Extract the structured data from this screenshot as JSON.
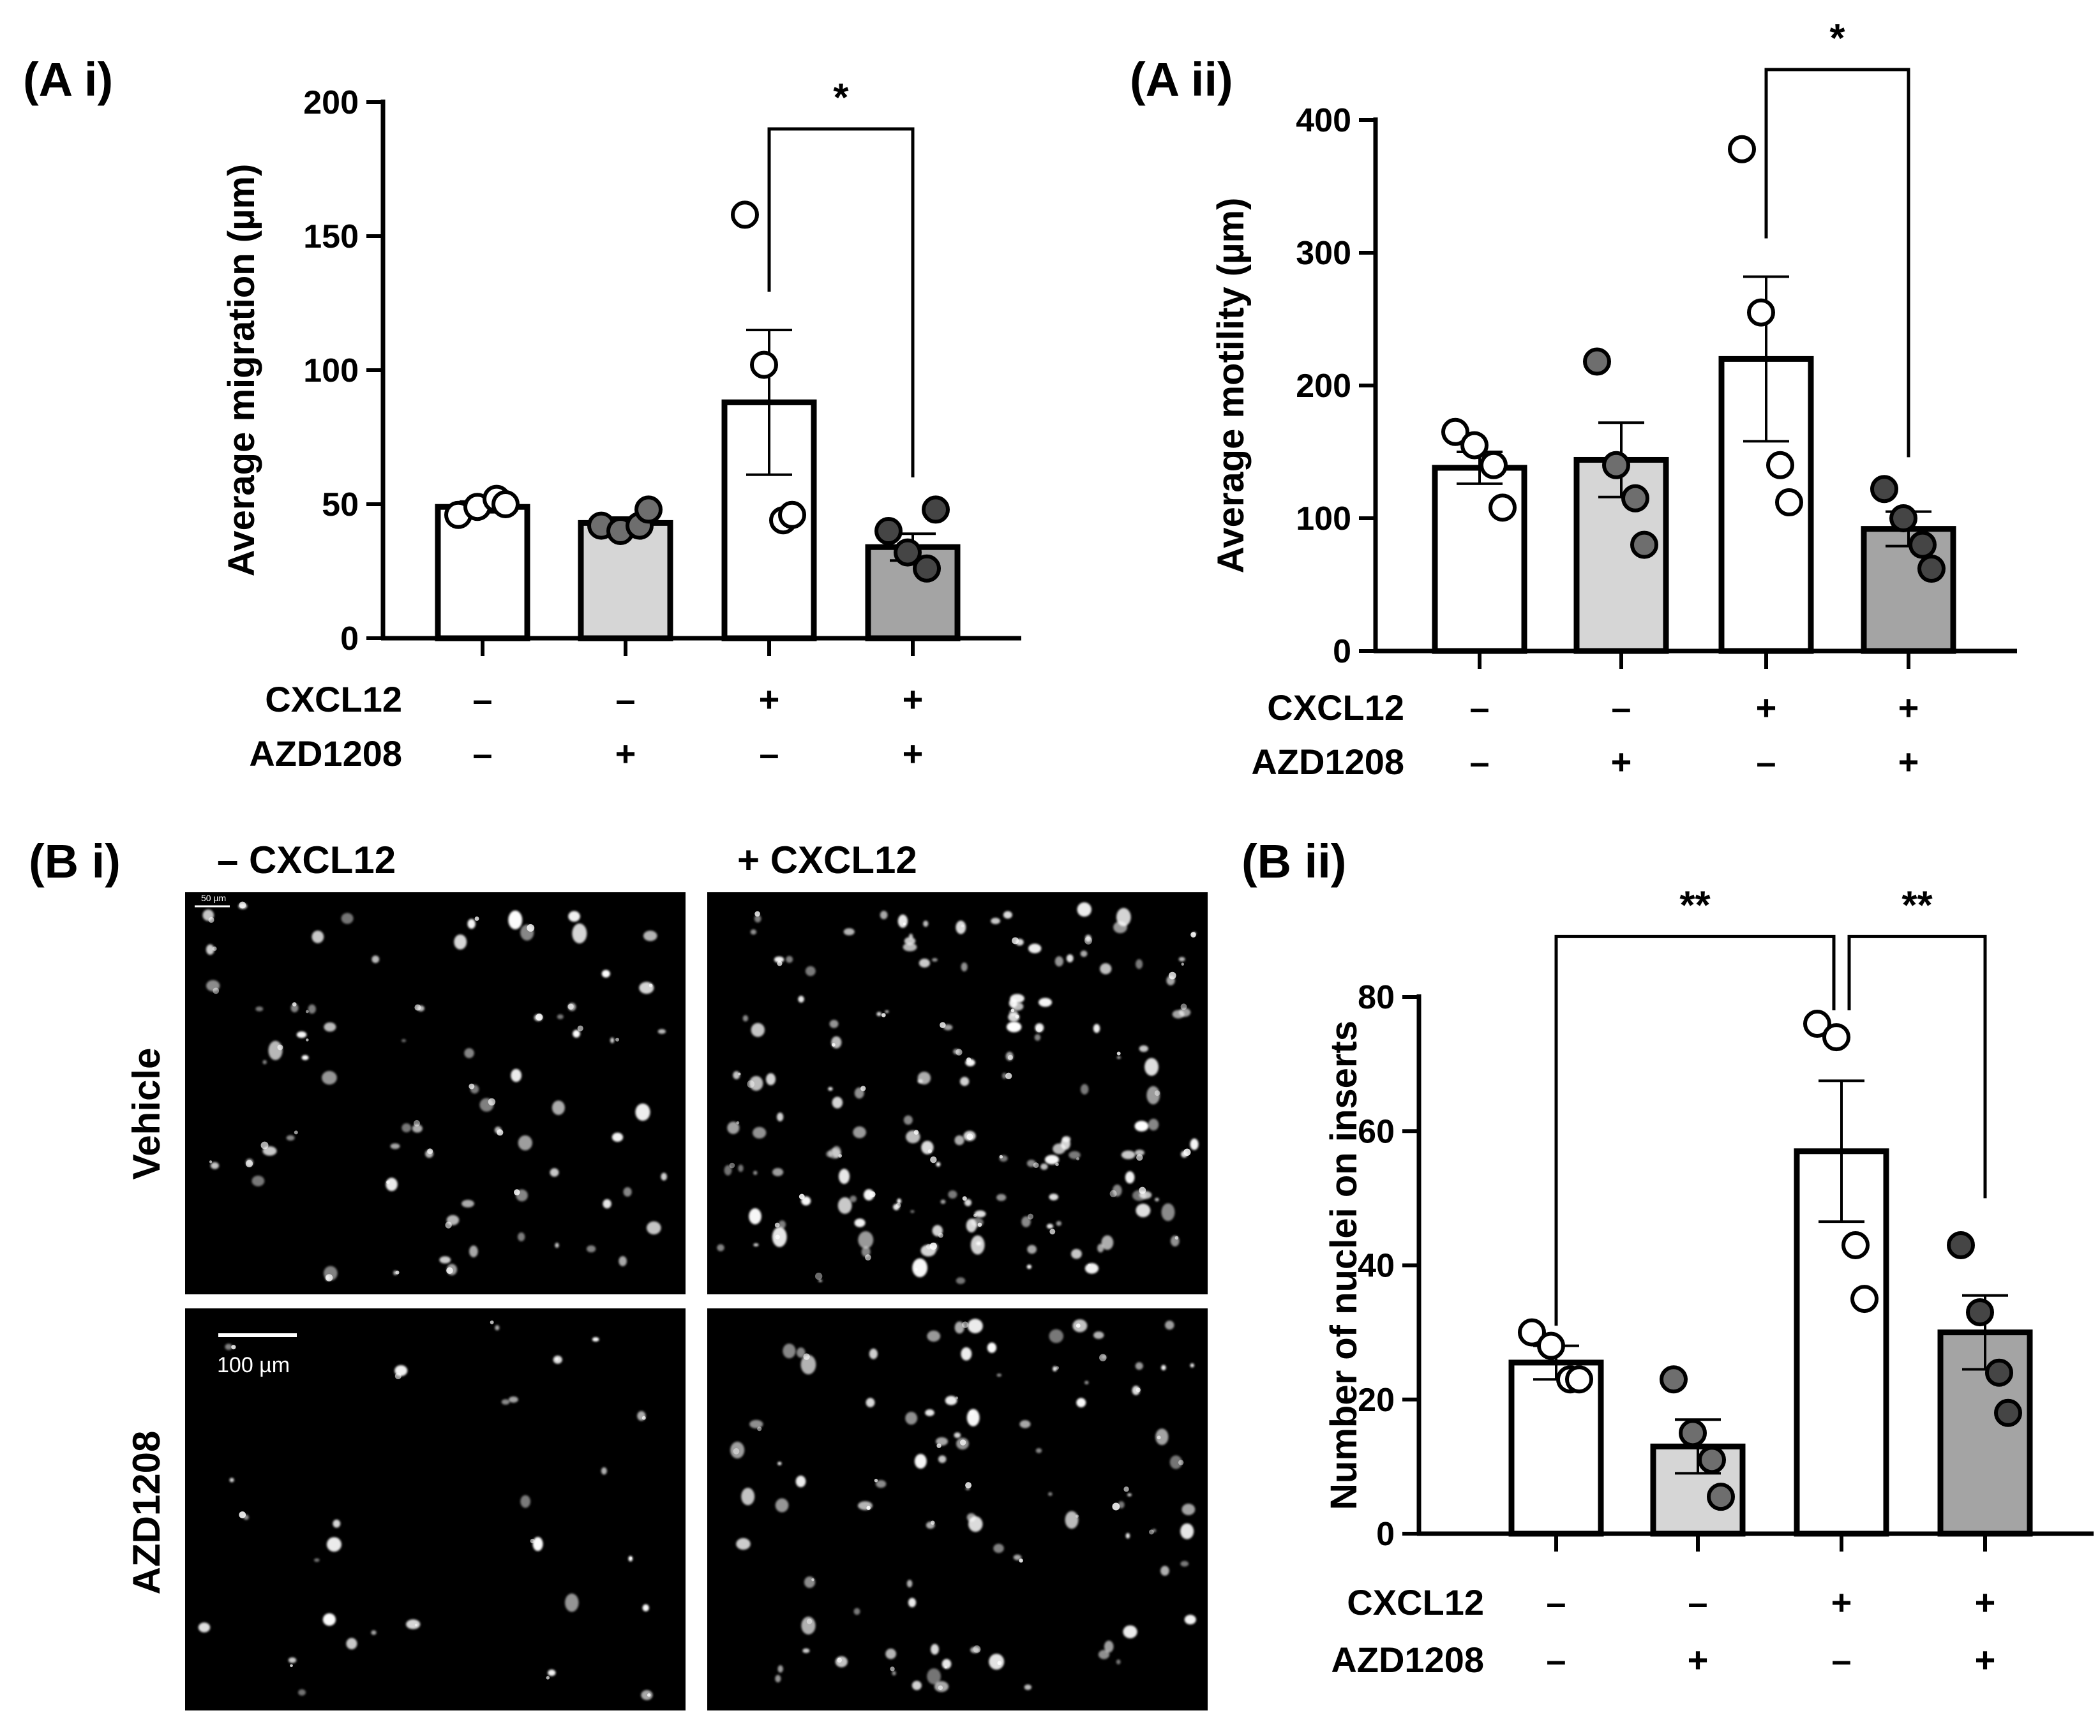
{
  "panels": {
    "a_i": "(A i)",
    "a_ii": "(A ii)",
    "b_i": "(B i)",
    "b_ii": "(B ii)"
  },
  "colors": {
    "vehicle_fill": "#ffffff",
    "azd_fill": "#d6d6d6",
    "cxcl_fill": "#ffffff",
    "combo_fill": "#a4a4a4",
    "dot_open": "#ffffff",
    "dot_filled": "#6e6e6e",
    "dot_filled_dark": "#454545"
  },
  "chart_data": [
    {
      "id": "a_i",
      "type": "bar",
      "ylabel": "Average migration (µm)",
      "ylim": [
        0,
        200
      ],
      "yticks": [
        0,
        50,
        100,
        150,
        200
      ],
      "conditions": [
        {
          "label": "CXCL12",
          "signs": [
            "–",
            "–",
            "+",
            "+"
          ]
        },
        {
          "label": "AZD1208",
          "signs": [
            "–",
            "+",
            "–",
            "+"
          ]
        }
      ],
      "values": [
        49,
        43,
        88,
        34
      ],
      "sem": [
        2,
        2,
        27,
        5
      ],
      "points": [
        [
          46,
          49,
          52,
          50
        ],
        [
          42,
          40,
          42,
          48
        ],
        [
          158,
          102,
          44,
          46
        ],
        [
          40,
          32,
          26,
          48
        ]
      ],
      "significance": [
        {
          "from": 2,
          "to": 3,
          "label": "*",
          "level": 190
        }
      ]
    },
    {
      "id": "a_ii",
      "type": "bar",
      "ylabel": "Average motility (µm)",
      "ylim": [
        0,
        400
      ],
      "yticks": [
        0,
        100,
        200,
        300,
        400
      ],
      "conditions": [
        {
          "label": "CXCL12",
          "signs": [
            "–",
            "–",
            "+",
            "+"
          ]
        },
        {
          "label": "AZD1208",
          "signs": [
            "–",
            "+",
            "–",
            "+"
          ]
        }
      ],
      "values": [
        138,
        144,
        220,
        92
      ],
      "sem": [
        12,
        28,
        62,
        13
      ],
      "points": [
        [
          165,
          155,
          140,
          108
        ],
        [
          218,
          140,
          115,
          80
        ],
        [
          378,
          255,
          140,
          112
        ],
        [
          122,
          100,
          80,
          62
        ]
      ],
      "significance": [
        {
          "from": 2,
          "to": 3,
          "label": "*",
          "level": 438
        }
      ]
    },
    {
      "id": "b_ii",
      "type": "bar",
      "ylabel": "Number of nuclei on inserts",
      "ylim": [
        0,
        80
      ],
      "yticks": [
        0,
        20,
        40,
        60,
        80
      ],
      "conditions": [
        {
          "label": "CXCL12",
          "signs": [
            "–",
            "–",
            "+",
            "+"
          ]
        },
        {
          "label": "AZD1208",
          "signs": [
            "–",
            "+",
            "–",
            "+"
          ]
        }
      ],
      "values": [
        25.5,
        13,
        57,
        30
      ],
      "sem": [
        2.5,
        4,
        10.5,
        5.5
      ],
      "points": [
        [
          30,
          28,
          23,
          23
        ],
        [
          23,
          15,
          11,
          5.5
        ],
        [
          76,
          74,
          43,
          35
        ],
        [
          43,
          33,
          24,
          18
        ]
      ],
      "significance": [
        {
          "from": 0,
          "to": 2,
          "label": "**",
          "level": 89
        },
        {
          "from": 2,
          "to": 3,
          "label": "**",
          "level": 89
        }
      ]
    }
  ],
  "images": {
    "col_minus": "– CXCL12",
    "col_plus": "+ CXCL12",
    "row_vehicle": "Vehicle",
    "row_azd": "AZD1208",
    "scale_label": "100 µm",
    "scale_label_small": "50 µm"
  }
}
